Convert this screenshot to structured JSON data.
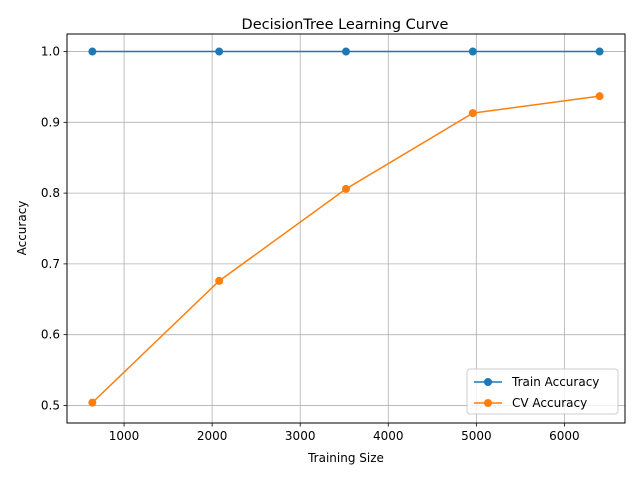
{
  "chart_data": {
    "type": "line",
    "title": "DecisionTree Learning Curve",
    "xlabel": "Training Size",
    "ylabel": "Accuracy",
    "x": [
      640,
      2080,
      3520,
      4960,
      6400
    ],
    "xlim": [
      352,
      6688
    ],
    "ylim": [
      0.4752,
      1.0248
    ],
    "xticks": [
      1000,
      2000,
      3000,
      4000,
      5000,
      6000
    ],
    "xtick_labels": [
      "1000",
      "2000",
      "3000",
      "4000",
      "5000",
      "6000"
    ],
    "yticks": [
      0.5,
      0.6,
      0.7,
      0.8,
      0.9,
      1.0
    ],
    "ytick_labels": [
      "0.5",
      "0.6",
      "0.7",
      "0.8",
      "0.9",
      "1.0"
    ],
    "grid": true,
    "legend_position": "lower-right",
    "series": [
      {
        "name": "Train Accuracy",
        "color": "#1f77b4",
        "marker": "circle",
        "values": [
          1.0,
          1.0,
          1.0,
          1.0,
          1.0
        ]
      },
      {
        "name": "CV Accuracy",
        "color": "#ff7f0e",
        "marker": "circle",
        "values": [
          0.504,
          0.676,
          0.806,
          0.913,
          0.937
        ]
      }
    ]
  }
}
